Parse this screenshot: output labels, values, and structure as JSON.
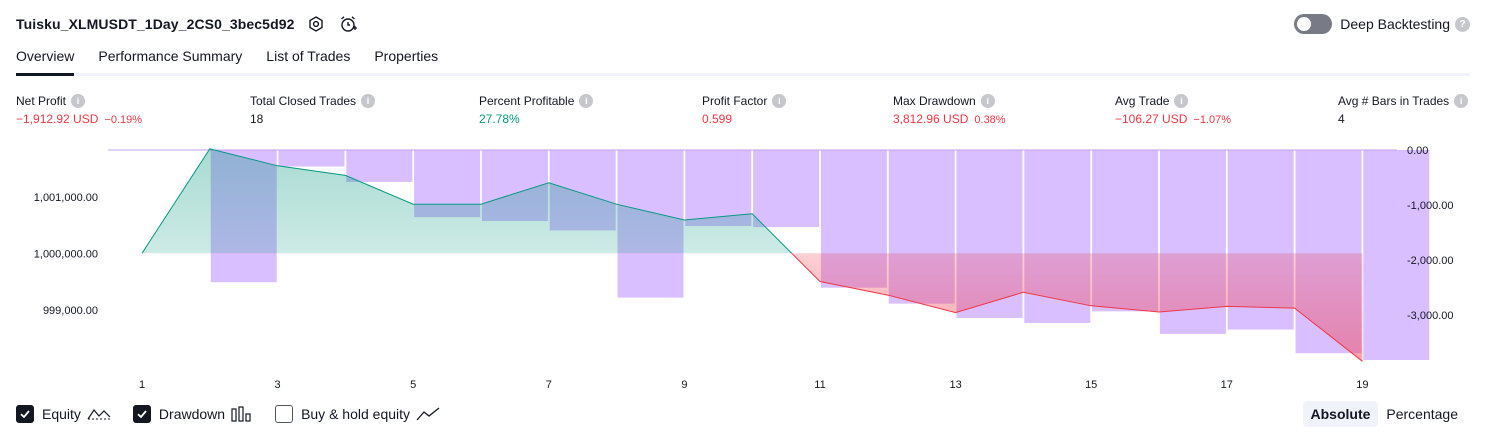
{
  "header": {
    "title": "Tuisku_XLMUSDT_1Day_2CS0_3bec5d92",
    "settings_icon": "settings-icon",
    "alert_icon": "alarm-clock-icon"
  },
  "deep_backtesting": {
    "label": "Deep Backtesting",
    "enabled": false,
    "help": "?"
  },
  "tabs": [
    {
      "label": "Overview",
      "active": true
    },
    {
      "label": "Performance Summary",
      "active": false
    },
    {
      "label": "List of Trades",
      "active": false
    },
    {
      "label": "Properties",
      "active": false
    }
  ],
  "metrics": [
    {
      "label": "Net Profit",
      "value": "−1,912.92 USD",
      "pct": "−0.19%",
      "color": "#f23645"
    },
    {
      "label": "Total Closed Trades",
      "value": "18",
      "pct": "",
      "color": "#131722"
    },
    {
      "label": "Percent Profitable",
      "value": "27.78%",
      "pct": "",
      "color": "#089981"
    },
    {
      "label": "Profit Factor",
      "value": "0.599",
      "pct": "",
      "color": "#f23645"
    },
    {
      "label": "Max Drawdown",
      "value": "3,812.96 USD",
      "pct": "0.38%",
      "color": "#f23645"
    },
    {
      "label": "Avg Trade",
      "value": "−106.27 USD",
      "pct": "−1.07%",
      "color": "#f23645"
    },
    {
      "label": "Avg # Bars in Trades",
      "value": "4",
      "pct": "",
      "color": "#131722"
    }
  ],
  "chart_data": {
    "type": "line",
    "x_ticks": [
      "1",
      "3",
      "5",
      "7",
      "9",
      "11",
      "13",
      "15",
      "17",
      "19"
    ],
    "left_axis_ticks": [
      "1,001,000.00",
      "1,000,000.00",
      "999,000.00"
    ],
    "left_axis_tick_values": [
      1001000,
      1000000,
      999000
    ],
    "right_axis_ticks": [
      "0.00",
      "-1,000.00",
      "-2,000.00",
      "-3,000.00"
    ],
    "right_axis_tick_values": [
      0,
      -1000,
      -2000,
      -3000
    ],
    "ylim_left": [
      998110,
      1001830
    ],
    "ylim_right": [
      -3812.96,
      0
    ],
    "baseline_equity": 1000000,
    "series": [
      {
        "name": "Equity",
        "x": [
          1,
          2,
          3,
          4,
          5,
          6,
          7,
          8,
          9,
          10,
          11,
          12,
          13,
          14,
          15,
          16,
          17,
          18,
          19
        ],
        "values": [
          1000000,
          1001850,
          1001550,
          1001380,
          1000870,
          1000870,
          1001250,
          1000870,
          1000590,
          1000700,
          999500,
          999260,
          998950,
          999310,
          999070,
          998960,
          999060,
          999030,
          998087
        ]
      },
      {
        "name": "Drawdown",
        "x": [
          1,
          2,
          3,
          4,
          5,
          6,
          7,
          8,
          9,
          10,
          11,
          12,
          13,
          14,
          15,
          16,
          17,
          18,
          19
        ],
        "values": [
          0,
          -2400,
          -300,
          -580,
          -1220,
          -1290,
          -1460,
          -2680,
          -1380,
          -1400,
          -2500,
          -2790,
          -3050,
          -3140,
          -2930,
          -3340,
          -3260,
          -3690,
          -3813
        ]
      }
    ],
    "colors": {
      "equity_up": "#089981",
      "equity_down": "#f23645",
      "drawdown": "#c59cff"
    }
  },
  "legend": [
    {
      "label": "Equity",
      "checked": true,
      "icon": "equity-wave-icon"
    },
    {
      "label": "Drawdown",
      "checked": true,
      "icon": "drawdown-bars-icon"
    },
    {
      "label": "Buy & hold equity",
      "checked": false,
      "icon": "buy-hold-line-icon"
    }
  ],
  "modes": [
    {
      "label": "Absolute",
      "active": true
    },
    {
      "label": "Percentage",
      "active": false
    }
  ]
}
